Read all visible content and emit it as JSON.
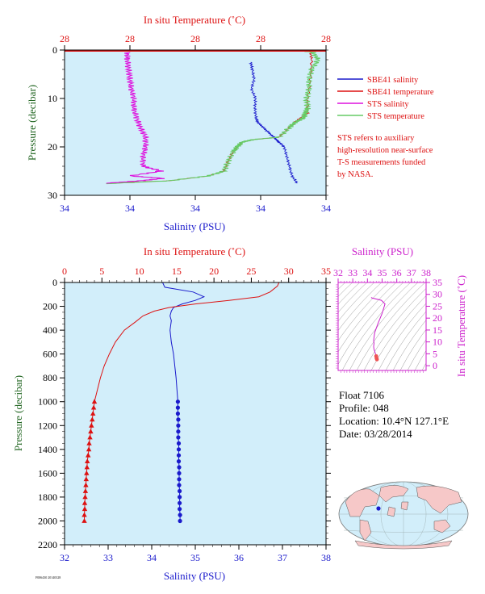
{
  "colors": {
    "salinity": "#1a1acc",
    "temperature": "#dd1111",
    "sts_salinity": "#dd11dd",
    "sts_temperature": "#66cc66",
    "plot_bg": "#d2eefa",
    "axis_green": "#226622",
    "ts_magenta": "#cc22cc"
  },
  "legend": {
    "entries": [
      {
        "label": "SBE41 salinity",
        "color": "#1a1acc"
      },
      {
        "label": "SBE41 temperature",
        "color": "#dd1111"
      },
      {
        "label": "STS salinity",
        "color": "#dd11dd"
      },
      {
        "label": "STS temperature",
        "color": "#66cc66"
      }
    ],
    "note_lines": [
      "STS refers to auxiliary",
      "high-resolution near-surface",
      "T-S measurements funded",
      "by NASA."
    ]
  },
  "info": {
    "float": "Float  7106",
    "profile": "Profile:  048",
    "location": "Location:  10.4°N  127.1°E",
    "date": "Date:  03/28/2014"
  },
  "footer_code": "F006430 20140328",
  "chart_data": [
    {
      "type": "line",
      "panel": "near-surface",
      "title_top": "In situ Temperature (˚C)",
      "xlabel": "Salinity (PSU)",
      "ylabel": "Pressure (decibar)",
      "top_ticks": [
        "28",
        "28",
        "28",
        "28",
        "28"
      ],
      "bottom_ticks": [
        "34",
        "34",
        "34",
        "34",
        "34"
      ],
      "y_ticks": [
        "0",
        "10",
        "20",
        "30"
      ],
      "ylim": [
        30,
        0
      ],
      "series": [
        {
          "name": "SBE41 salinity",
          "p": [
            2.5,
            4,
            6,
            8,
            10,
            12,
            14,
            15,
            16,
            17,
            18,
            18.5,
            19,
            20,
            22,
            24,
            26,
            27.5
          ],
          "x": [
            0.712,
            0.718,
            0.725,
            0.715,
            0.73,
            0.728,
            0.732,
            0.74,
            0.76,
            0.78,
            0.8,
            0.81,
            0.82,
            0.84,
            0.85,
            0.86,
            0.87,
            0.89
          ]
        },
        {
          "name": "SBE41 temperature",
          "p": [
            0,
            2,
            6,
            10,
            13,
            14.5,
            16,
            18,
            18.5,
            19,
            20,
            21,
            23,
            25,
            26,
            27,
            27.3,
            27.6
          ],
          "x": [
            0.94,
            0.945,
            0.94,
            0.93,
            0.93,
            0.89,
            0.86,
            0.82,
            0.72,
            0.68,
            0.66,
            0.645,
            0.625,
            0.61,
            0.55,
            0.4,
            0.25,
            0.16
          ]
        },
        {
          "name": "STS salinity",
          "p": [
            0.5,
            2,
            4,
            6,
            8,
            10,
            12,
            14,
            16,
            18,
            20,
            22,
            24,
            25,
            26,
            26.5,
            27,
            27.5
          ],
          "x": [
            0.24,
            0.24,
            0.245,
            0.25,
            0.255,
            0.265,
            0.265,
            0.275,
            0.29,
            0.31,
            0.31,
            0.3,
            0.3,
            0.37,
            0.25,
            0.38,
            0.29,
            0.16
          ]
        },
        {
          "name": "STS temperature",
          "p": [
            0,
            0.5,
            2,
            4,
            6,
            8,
            10,
            12,
            13,
            14,
            15,
            16,
            18,
            18.5,
            19,
            20,
            21,
            23,
            25,
            26,
            27,
            27.6
          ],
          "x": [
            0.9,
            0.95,
            0.97,
            0.945,
            0.935,
            0.935,
            0.925,
            0.93,
            0.92,
            0.915,
            0.88,
            0.86,
            0.82,
            0.72,
            0.68,
            0.66,
            0.645,
            0.625,
            0.61,
            0.55,
            0.4,
            0.16
          ]
        }
      ]
    },
    {
      "type": "line",
      "panel": "full-profile",
      "title_top": "In situ Temperature (˚C)",
      "xlabel": "Salinity (PSU)",
      "ylabel": "Pressure (decibar)",
      "salinity_ticks": [
        32,
        33,
        34,
        35,
        36,
        37,
        38
      ],
      "temperature_ticks": [
        0,
        5,
        10,
        15,
        20,
        25,
        30,
        35
      ],
      "pressure_ticks": [
        0,
        200,
        400,
        600,
        800,
        1000,
        1200,
        1400,
        1600,
        1800,
        2000,
        2200
      ],
      "xlim_salinity": [
        32,
        38
      ],
      "xlim_temperature": [
        0,
        35
      ],
      "ylim": [
        2200,
        0
      ],
      "series": [
        {
          "name": "Salinity",
          "p": [
            0,
            40,
            80,
            120,
            150,
            180,
            210,
            240,
            280,
            320,
            400,
            500,
            600,
            700,
            800,
            900,
            1000
          ],
          "values": [
            34.25,
            34.3,
            34.95,
            35.2,
            35.0,
            34.7,
            34.5,
            34.45,
            34.42,
            34.45,
            34.42,
            34.45,
            34.5,
            34.53,
            34.56,
            34.58,
            34.6
          ]
        },
        {
          "name": "Temperature",
          "p": [
            0,
            30,
            80,
            120,
            150,
            180,
            210,
            240,
            280,
            330,
            400,
            500,
            600,
            700,
            800,
            900,
            1000
          ],
          "values": [
            28.7,
            28.5,
            27.5,
            26.0,
            22.0,
            17.5,
            14.0,
            12.0,
            10.5,
            9.5,
            8.0,
            6.8,
            6.0,
            5.3,
            4.8,
            4.4,
            4.0
          ]
        },
        {
          "name": "Salinity bottle samples",
          "p": [
            1000,
            1050,
            1100,
            1150,
            1200,
            1250,
            1300,
            1350,
            1400,
            1450,
            1500,
            1550,
            1600,
            1650,
            1700,
            1750,
            1800,
            1850,
            1900,
            1950,
            2000
          ],
          "values": [
            34.6,
            34.6,
            34.6,
            34.61,
            34.61,
            34.61,
            34.61,
            34.62,
            34.62,
            34.62,
            34.62,
            34.63,
            34.63,
            34.63,
            34.63,
            34.64,
            34.64,
            34.64,
            34.64,
            34.65,
            34.65
          ]
        },
        {
          "name": "Temperature bottle samples",
          "p": [
            1000,
            1050,
            1100,
            1150,
            1200,
            1250,
            1300,
            1350,
            1400,
            1450,
            1500,
            1550,
            1600,
            1650,
            1700,
            1750,
            1800,
            1850,
            1900,
            1950,
            2000
          ],
          "values": [
            4.0,
            3.9,
            3.8,
            3.7,
            3.6,
            3.5,
            3.4,
            3.3,
            3.25,
            3.15,
            3.05,
            3.0,
            2.95,
            2.9,
            2.85,
            2.8,
            2.75,
            2.7,
            2.7,
            2.65,
            2.65
          ]
        }
      ]
    },
    {
      "type": "scatter",
      "panel": "T-S diagram",
      "xlabel": "Salinity (PSU)",
      "ylabel": "In situ Temperature (˚C)",
      "xlim": [
        32,
        38
      ],
      "ylim": [
        -2,
        35
      ],
      "x_ticks": [
        32,
        33,
        34,
        35,
        36,
        37,
        38
      ],
      "y_ticks": [
        0,
        5,
        10,
        15,
        20,
        25,
        30,
        35
      ],
      "series": [
        {
          "name": "T-S",
          "x": [
            34.25,
            34.3,
            34.95,
            35.2,
            35.0,
            34.7,
            34.5,
            34.45,
            34.42,
            34.45,
            34.42,
            34.45,
            34.5,
            34.53,
            34.56,
            34.58,
            34.6,
            34.62,
            34.65
          ],
          "y": [
            28.7,
            28.5,
            27.5,
            26.0,
            22.0,
            17.5,
            14.0,
            12.0,
            10.5,
            9.5,
            8.0,
            6.8,
            6.0,
            5.3,
            4.8,
            4.4,
            4.0,
            3.2,
            2.65
          ]
        }
      ]
    },
    {
      "type": "map",
      "panel": "location-map",
      "float_lat": 10.4,
      "float_lon": 127.1
    }
  ]
}
